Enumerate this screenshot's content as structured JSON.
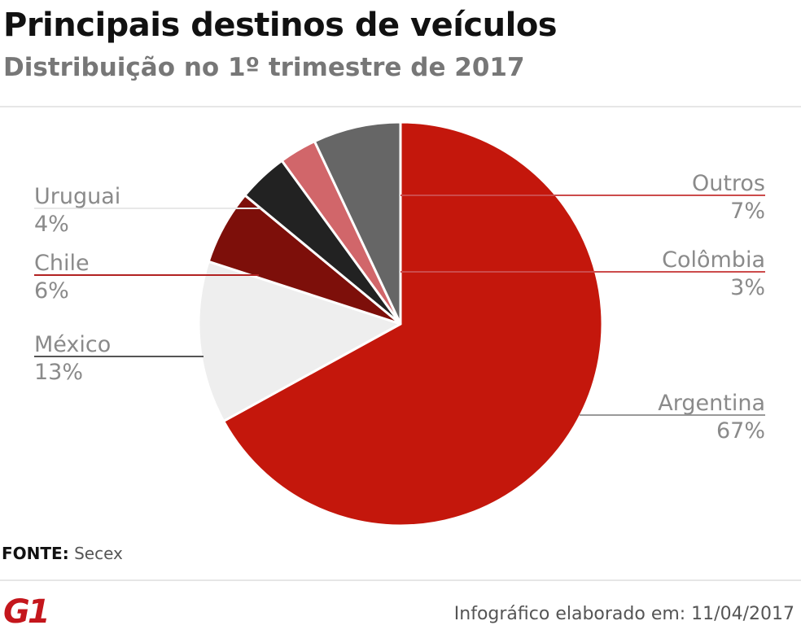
{
  "title": "Principais destinos de veículos",
  "subtitle": "Distribuição no 1º trimestre de 2017",
  "source_label": "FONTE:",
  "source_value": "Secex",
  "logo": "G1",
  "credit": "Infográfico elaborado em: 11/04/2017",
  "chart_data": {
    "type": "pie",
    "title": "Principais destinos de veículos",
    "subtitle": "Distribuição no 1º trimestre de 2017",
    "unit": "%",
    "slices": [
      {
        "label": "Argentina",
        "value": 67,
        "display": "67%",
        "color": "#c4170c",
        "side": "right"
      },
      {
        "label": "México",
        "value": 13,
        "display": "13%",
        "color": "#eeeeee",
        "side": "left"
      },
      {
        "label": "Chile",
        "value": 6,
        "display": "6%",
        "color": "#7d0f0a",
        "side": "left"
      },
      {
        "label": "Uruguai",
        "value": 4,
        "display": "4%",
        "color": "#222222",
        "side": "left"
      },
      {
        "label": "Colômbia",
        "value": 3,
        "display": "3%",
        "color": "#d1666a",
        "side": "right"
      },
      {
        "label": "Outros",
        "value": 7,
        "display": "7%",
        "color": "#666666",
        "side": "right"
      }
    ]
  }
}
